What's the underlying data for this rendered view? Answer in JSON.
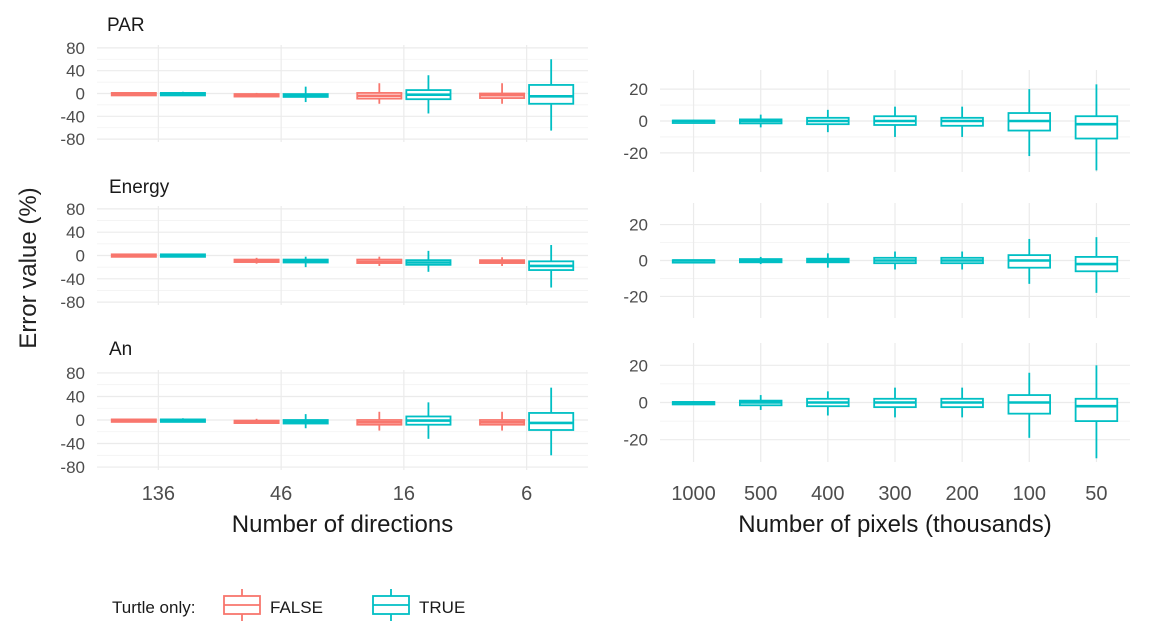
{
  "ylabel": "Error value (%)",
  "legend": {
    "title": "Turtle only:",
    "entries": [
      {
        "label": "FALSE",
        "color": "#F8766D"
      },
      {
        "label": "TRUE",
        "color": "#00BFC4"
      }
    ],
    "placement": "bottom-left"
  },
  "colors": {
    "false": "#F8766D",
    "true": "#00BFC4",
    "grid": "#ebebeb",
    "text": "#333333"
  },
  "chart_data": [
    {
      "type": "boxplot",
      "facet": "PAR",
      "xlabel": "Number of directions",
      "ylabel": "Error value (%)",
      "ylim": [
        -85,
        85
      ],
      "yticks": [
        80,
        40,
        0,
        -40,
        -80
      ],
      "extra_yticks": [
        60,
        20,
        -20,
        -60
      ],
      "categories": [
        "136",
        "46",
        "16",
        "6"
      ],
      "grid": true,
      "series": [
        {
          "name": "FALSE",
          "boxes": [
            {
              "min": -2,
              "q1": -1,
              "median": 0,
              "q3": 1,
              "max": 2
            },
            {
              "min": -5,
              "q1": -3,
              "median": -2,
              "q3": -1,
              "max": 1
            },
            {
              "min": -18,
              "q1": -9,
              "median": -4,
              "q3": 1,
              "max": 18
            },
            {
              "min": -18,
              "q1": -8,
              "median": -3,
              "q3": 0,
              "max": 18
            }
          ]
        },
        {
          "name": "TRUE",
          "boxes": [
            {
              "min": -3,
              "q1": -1,
              "median": 0,
              "q3": 1,
              "max": 3
            },
            {
              "min": -15,
              "q1": -6,
              "median": -3,
              "q3": -1,
              "max": 12
            },
            {
              "min": -35,
              "q1": -10,
              "median": -2,
              "q3": 6,
              "max": 32
            },
            {
              "min": -65,
              "q1": -18,
              "median": -5,
              "q3": 15,
              "max": 60
            }
          ]
        }
      ]
    },
    {
      "type": "boxplot",
      "facet": "Energy",
      "xlabel": "Number of directions",
      "ylabel": "Error value (%)",
      "ylim": [
        -85,
        85
      ],
      "yticks": [
        80,
        40,
        0,
        -40,
        -80
      ],
      "extra_yticks": [
        60,
        20,
        -20,
        -60
      ],
      "categories": [
        "136",
        "46",
        "16",
        "6"
      ],
      "grid": true,
      "series": [
        {
          "name": "FALSE",
          "boxes": [
            {
              "min": -1,
              "q1": 0,
              "median": 1,
              "q3": 2,
              "max": 3
            },
            {
              "min": -14,
              "q1": -11,
              "median": -9,
              "q3": -7,
              "max": -4
            },
            {
              "min": -18,
              "q1": -13,
              "median": -11,
              "q3": -7,
              "max": -2
            },
            {
              "min": -18,
              "q1": -13,
              "median": -11,
              "q3": -8,
              "max": -3
            }
          ]
        },
        {
          "name": "TRUE",
          "boxes": [
            {
              "min": -1,
              "q1": 0,
              "median": 1,
              "q3": 2,
              "max": 3
            },
            {
              "min": -20,
              "q1": -12,
              "median": -10,
              "q3": -7,
              "max": -2
            },
            {
              "min": -28,
              "q1": -16,
              "median": -12,
              "q3": -8,
              "max": 8
            },
            {
              "min": -55,
              "q1": -25,
              "median": -18,
              "q3": -10,
              "max": 18
            }
          ]
        }
      ]
    },
    {
      "type": "boxplot",
      "facet": "An",
      "xlabel": "Number of directions",
      "ylabel": "Error value (%)",
      "ylim": [
        -85,
        85
      ],
      "yticks": [
        80,
        40,
        0,
        -40,
        -80
      ],
      "extra_yticks": [
        60,
        20,
        -20,
        -60
      ],
      "categories": [
        "136",
        "46",
        "16",
        "6"
      ],
      "grid": true,
      "series": [
        {
          "name": "FALSE",
          "boxes": [
            {
              "min": -2,
              "q1": -1,
              "median": 0,
              "q3": 1,
              "max": 2
            },
            {
              "min": -6,
              "q1": -4,
              "median": -3,
              "q3": -1,
              "max": 2
            },
            {
              "min": -18,
              "q1": -8,
              "median": -4,
              "q3": 0,
              "max": 14
            },
            {
              "min": -18,
              "q1": -8,
              "median": -4,
              "q3": 0,
              "max": 14
            }
          ]
        },
        {
          "name": "TRUE",
          "boxes": [
            {
              "min": -3,
              "q1": -1,
              "median": 0,
              "q3": 1,
              "max": 3
            },
            {
              "min": -14,
              "q1": -6,
              "median": -3,
              "q3": 0,
              "max": 10
            },
            {
              "min": -32,
              "q1": -8,
              "median": -1,
              "q3": 6,
              "max": 30
            },
            {
              "min": -60,
              "q1": -17,
              "median": -5,
              "q3": 12,
              "max": 55
            }
          ]
        }
      ]
    },
    {
      "type": "boxplot",
      "facet": "PAR",
      "xlabel": "Number of pixels (thousands)",
      "ylim": [
        -32,
        32
      ],
      "yticks": [
        20,
        0,
        -20
      ],
      "extra_yticks": [
        10,
        -10
      ],
      "categories": [
        "1000",
        "500",
        "400",
        "300",
        "200",
        "100",
        "50"
      ],
      "grid": true,
      "series": [
        {
          "name": "TRUE",
          "boxes": [
            {
              "min": -0.8,
              "q1": -0.3,
              "median": 0,
              "q3": 0.3,
              "max": 0.8
            },
            {
              "min": -4,
              "q1": -1.5,
              "median": 0,
              "q3": 1,
              "max": 4
            },
            {
              "min": -7,
              "q1": -2,
              "median": 0,
              "q3": 2,
              "max": 7
            },
            {
              "min": -10,
              "q1": -2.5,
              "median": 0,
              "q3": 3,
              "max": 9
            },
            {
              "min": -10,
              "q1": -3,
              "median": 0,
              "q3": 2,
              "max": 9
            },
            {
              "min": -22,
              "q1": -6,
              "median": 0,
              "q3": 5,
              "max": 20
            },
            {
              "min": -31,
              "q1": -11,
              "median": -2,
              "q3": 3,
              "max": 23
            }
          ]
        }
      ]
    },
    {
      "type": "boxplot",
      "facet": "Energy",
      "xlabel": "Number of pixels (thousands)",
      "ylim": [
        -32,
        32
      ],
      "yticks": [
        20,
        0,
        -20
      ],
      "extra_yticks": [
        10,
        -10
      ],
      "categories": [
        "1000",
        "500",
        "400",
        "300",
        "200",
        "100",
        "50"
      ],
      "grid": true,
      "series": [
        {
          "name": "TRUE",
          "boxes": [
            {
              "min": -0.6,
              "q1": -0.2,
              "median": 0,
              "q3": 0.2,
              "max": 0.6
            },
            {
              "min": -2,
              "q1": -1,
              "median": 0,
              "q3": 0.8,
              "max": 2
            },
            {
              "min": -4,
              "q1": -1,
              "median": 0,
              "q3": 1,
              "max": 4
            },
            {
              "min": -5,
              "q1": -1.5,
              "median": 0,
              "q3": 1.5,
              "max": 5
            },
            {
              "min": -5,
              "q1": -1.5,
              "median": 0,
              "q3": 1.5,
              "max": 5
            },
            {
              "min": -13,
              "q1": -4,
              "median": 0,
              "q3": 3,
              "max": 12
            },
            {
              "min": -18,
              "q1": -6,
              "median": -2,
              "q3": 2,
              "max": 13
            }
          ]
        }
      ]
    },
    {
      "type": "boxplot",
      "facet": "An",
      "xlabel": "Number of pixels (thousands)",
      "ylim": [
        -32,
        32
      ],
      "yticks": [
        20,
        0,
        -20
      ],
      "extra_yticks": [
        10,
        -10
      ],
      "categories": [
        "1000",
        "500",
        "400",
        "300",
        "200",
        "100",
        "50"
      ],
      "grid": true,
      "series": [
        {
          "name": "TRUE",
          "boxes": [
            {
              "min": -0.8,
              "q1": -0.3,
              "median": 0,
              "q3": 0.3,
              "max": 0.8
            },
            {
              "min": -4,
              "q1": -1.5,
              "median": 0,
              "q3": 1,
              "max": 4
            },
            {
              "min": -7,
              "q1": -2,
              "median": 0,
              "q3": 2,
              "max": 6
            },
            {
              "min": -8,
              "q1": -2.5,
              "median": 0,
              "q3": 2,
              "max": 8
            },
            {
              "min": -8,
              "q1": -2.5,
              "median": 0,
              "q3": 2,
              "max": 8
            },
            {
              "min": -19,
              "q1": -6,
              "median": 0,
              "q3": 4,
              "max": 16
            },
            {
              "min": -30,
              "q1": -10,
              "median": -2,
              "q3": 2,
              "max": 20
            }
          ]
        }
      ]
    }
  ]
}
